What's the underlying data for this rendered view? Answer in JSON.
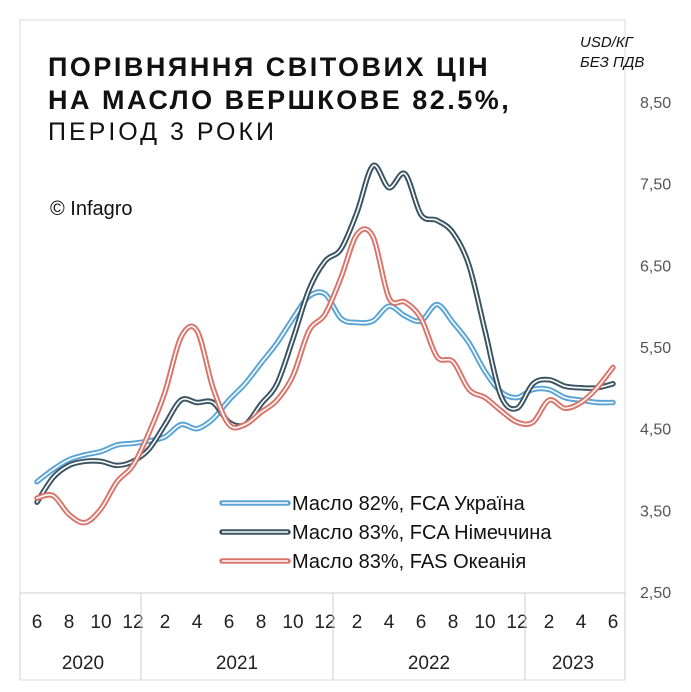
{
  "title": {
    "line1": "ПОРІВНЯННЯ СВІТОВИХ ЦІН",
    "line2": "НА МАСЛО ВЕРШКОВЕ 82.5%,",
    "line3": "ПЕРІОД 3 РОКИ"
  },
  "copyright": "© Infagro",
  "unit": {
    "line1": "USD/КГ",
    "line2": "БЕЗ ПДВ"
  },
  "chart_data": {
    "type": "line",
    "ylabel": "USD/КГ БЕЗ ПДВ",
    "ylim": [
      2.5,
      8.5
    ],
    "yticks": [
      "8,50",
      "7,50",
      "6,50",
      "5,50",
      "4,50",
      "3,50",
      "2,50"
    ],
    "ytick_values": [
      8.5,
      7.5,
      6.5,
      5.5,
      4.5,
      3.5,
      2.5
    ],
    "x": [
      6,
      7,
      8,
      9,
      10,
      11,
      12,
      13,
      14,
      15,
      16,
      17,
      18,
      19,
      20,
      21,
      22,
      23,
      24,
      25,
      26,
      27,
      28,
      29,
      30,
      31,
      32,
      33,
      34,
      35,
      36,
      37,
      38,
      39,
      40,
      41,
      42
    ],
    "month_ticks": [
      "6",
      "8",
      "10",
      "12",
      "2",
      "4",
      "6",
      "8",
      "10",
      "12",
      "2",
      "4",
      "6",
      "8",
      "10",
      "12",
      "2",
      "4",
      "6"
    ],
    "years": [
      "2020",
      "2021",
      "2022",
      "2023"
    ],
    "series": [
      {
        "name": "Масло 82%, FCA Україна",
        "color": "#5aa5d5",
        "values": [
          3.85,
          4.0,
          4.12,
          4.18,
          4.22,
          4.3,
          4.32,
          4.35,
          4.4,
          4.55,
          4.5,
          4.62,
          4.85,
          5.05,
          5.3,
          5.55,
          5.85,
          6.12,
          6.15,
          5.85,
          5.8,
          5.82,
          6.0,
          5.88,
          5.82,
          6.02,
          5.8,
          5.55,
          5.2,
          4.95,
          4.88,
          4.98,
          4.98,
          4.88,
          4.85,
          4.82,
          4.82
        ]
      },
      {
        "name": "Масло 83%, FCA Німеччина",
        "color": "#3a5463",
        "values": [
          3.6,
          3.9,
          4.05,
          4.1,
          4.1,
          4.05,
          4.1,
          4.25,
          4.55,
          4.85,
          4.82,
          4.82,
          4.58,
          4.55,
          4.8,
          5.05,
          5.6,
          6.2,
          6.55,
          6.7,
          7.15,
          7.72,
          7.45,
          7.62,
          7.12,
          7.05,
          6.9,
          6.5,
          5.7,
          4.9,
          4.75,
          5.05,
          5.1,
          5.02,
          5.0,
          5.0,
          5.05
        ]
      },
      {
        "name": "Масло 83%, FAS Океанія",
        "color": "#d9756a",
        "values": [
          3.65,
          3.68,
          3.45,
          3.35,
          3.52,
          3.85,
          4.05,
          4.45,
          4.95,
          5.62,
          5.7,
          5.0,
          4.55,
          4.55,
          4.7,
          4.85,
          5.15,
          5.7,
          5.9,
          6.35,
          6.88,
          6.85,
          6.1,
          6.05,
          5.85,
          5.38,
          5.32,
          4.98,
          4.88,
          4.72,
          4.58,
          4.58,
          4.85,
          4.75,
          4.82,
          5.0,
          5.25
        ]
      }
    ]
  }
}
